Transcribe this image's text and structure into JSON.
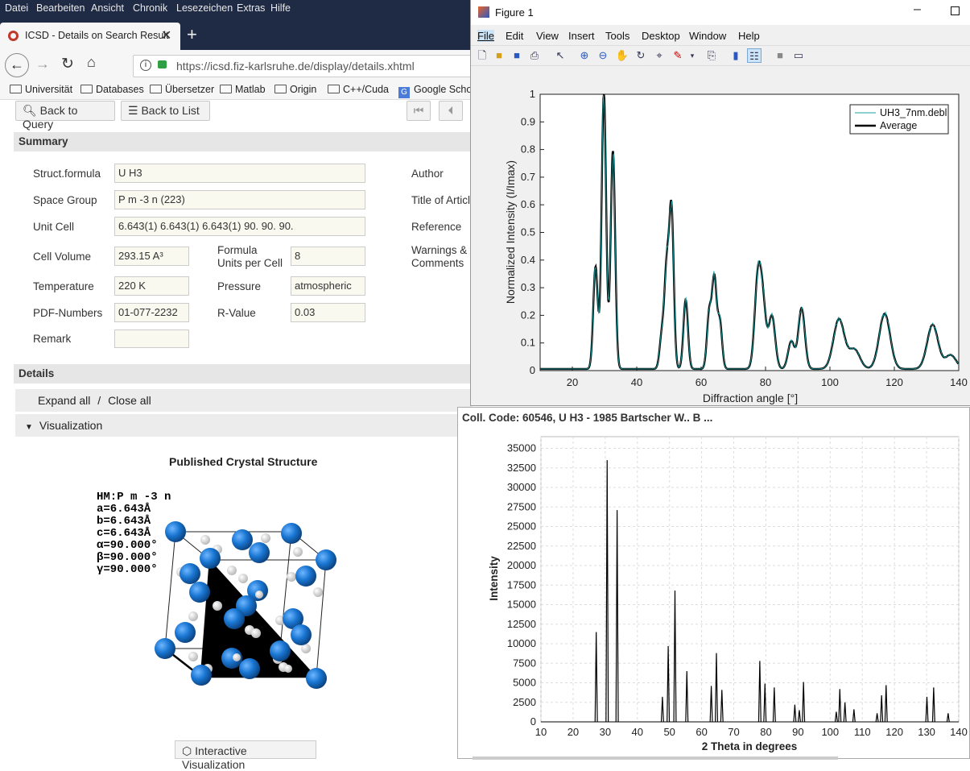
{
  "browser": {
    "menu": [
      "Datei",
      "Bearbeiten",
      "Ansicht",
      "Chronik",
      "Lesezeichen",
      "Extras",
      "Hilfe"
    ],
    "tab_title": "ICSD - Details on Search Result",
    "url": "https://icsd.fiz-karlsruhe.de/display/details.xhtml",
    "bookmarks": [
      "Universität",
      "Databases",
      "Übersetzer",
      "Matlab",
      "Origin",
      "C++/Cuda",
      "Google Schol"
    ]
  },
  "page": {
    "back_query": "Back to Query",
    "back_list": "Back to List",
    "summary_title": "Summary",
    "labels": {
      "formula": "Struct.formula",
      "space_group": "Space Group",
      "unit_cell": "Unit Cell",
      "cell_volume": "Cell Volume",
      "formula_units_1": "Formula",
      "formula_units_2": "Units per Cell",
      "temperature": "Temperature",
      "pressure": "Pressure",
      "pdf": "PDF-Numbers",
      "rvalue": "R-Value",
      "remark": "Remark",
      "author": "Author",
      "title": "Title of Articl",
      "reference": "Reference",
      "warnings_1": "Warnings &",
      "warnings_2": "Comments"
    },
    "values": {
      "formula": "U H3",
      "space_group": "P m -3 n (223)",
      "unit_cell": "6.643(1) 6.643(1) 6.643(1) 90. 90. 90.",
      "cell_volume": "293.15 A³",
      "formula_units": "8",
      "temperature": "220 K",
      "pressure": "atmospheric",
      "pdf": "01-077-2232",
      "rvalue": "0.03",
      "remark": ""
    },
    "details_title": "Details",
    "expand_all": "Expand all",
    "sep": "/",
    "close_all": "Close all",
    "visualization": "Visualization",
    "structure_title": "Published Crystal Structure",
    "structure_lines": [
      "HM:P m -3 n",
      "a=6.643Å",
      "b=6.643Å",
      "c=6.643Å",
      "α=90.000°",
      "β=90.000°",
      "γ=90.000°"
    ],
    "interactive_btn": "Interactive Visualization"
  },
  "figure1": {
    "window_title": "Figure 1",
    "menu": [
      "File",
      "Edit",
      "View",
      "Insert",
      "Tools",
      "Desktop",
      "Window",
      "Help"
    ],
    "chart_data": {
      "type": "line",
      "xlabel": "Diffraction angle [°]",
      "ylabel": "Normalized Intensity (I/Imax)",
      "xlim": [
        10,
        140
      ],
      "ylim": [
        0,
        1
      ],
      "xticks": [
        "20",
        "40",
        "60",
        "80",
        "100",
        "120",
        "140"
      ],
      "yticks": [
        "0",
        "0.1",
        "0.2",
        "0.3",
        "0.4",
        "0.5",
        "0.6",
        "0.7",
        "0.8",
        "0.9",
        "1"
      ],
      "legend": [
        "UH3_7nm.debl",
        "Average"
      ],
      "legend_position": "top-right",
      "series": [
        {
          "name": "Average",
          "peaks": [
            [
              27.2,
              0.37
            ],
            [
              29.8,
              1.0
            ],
            [
              32.6,
              0.79
            ],
            [
              47.8,
              0.12
            ],
            [
              49.3,
              0.35
            ],
            [
              50.8,
              0.57
            ],
            [
              55.2,
              0.25
            ],
            [
              62.5,
              0.2
            ],
            [
              64.1,
              0.32
            ],
            [
              65.8,
              0.17
            ],
            [
              77.6,
              0.31
            ],
            [
              79.2,
              0.21
            ],
            [
              82.0,
              0.19
            ],
            [
              88.0,
              0.1
            ],
            [
              91.2,
              0.22
            ],
            [
              102.8,
              0.18
            ],
            [
              107.6,
              0.07
            ],
            [
              117.0,
              0.2
            ],
            [
              131.9,
              0.16
            ],
            [
              137.5,
              0.05
            ]
          ]
        }
      ]
    }
  },
  "figure2": {
    "header": "Coll. Code: 60546, U H3 - 1985 Bartscher W.. B ...",
    "chart_data": {
      "type": "bar",
      "xlabel": "2 Theta in degrees",
      "ylabel": "Intensity",
      "xlim": [
        10,
        140
      ],
      "ylim": [
        0,
        36500
      ],
      "xticks": [
        "10",
        "20",
        "30",
        "40",
        "50",
        "60",
        "70",
        "80",
        "90",
        "100",
        "110",
        "120",
        "130",
        "140"
      ],
      "yticks": [
        "0",
        "2500",
        "5000",
        "7500",
        "10000",
        "12500",
        "15000",
        "17500",
        "20000",
        "22500",
        "25000",
        "27500",
        "30000",
        "32500",
        "35000"
      ],
      "peaks": [
        [
          27.2,
          11500
        ],
        [
          30.6,
          33500
        ],
        [
          33.7,
          27100
        ],
        [
          47.8,
          3200
        ],
        [
          49.6,
          9700
        ],
        [
          51.7,
          16800
        ],
        [
          55.4,
          6500
        ],
        [
          63.0,
          4600
        ],
        [
          64.6,
          8800
        ],
        [
          66.3,
          4100
        ],
        [
          78.1,
          7800
        ],
        [
          79.7,
          4900
        ],
        [
          82.6,
          4400
        ],
        [
          89.0,
          2200
        ],
        [
          90.4,
          1500
        ],
        [
          91.7,
          5100
        ],
        [
          101.9,
          1300
        ],
        [
          103.0,
          4200
        ],
        [
          104.6,
          2500
        ],
        [
          107.4,
          1600
        ],
        [
          114.6,
          1100
        ],
        [
          116.0,
          3400
        ],
        [
          117.4,
          4700
        ],
        [
          130.1,
          3200
        ],
        [
          132.2,
          4400
        ],
        [
          136.7,
          1100
        ]
      ]
    }
  },
  "colors": {
    "menubar": "#1f2a44",
    "atom_u": "#1976d2",
    "atom_h": "#f2f2f2"
  }
}
